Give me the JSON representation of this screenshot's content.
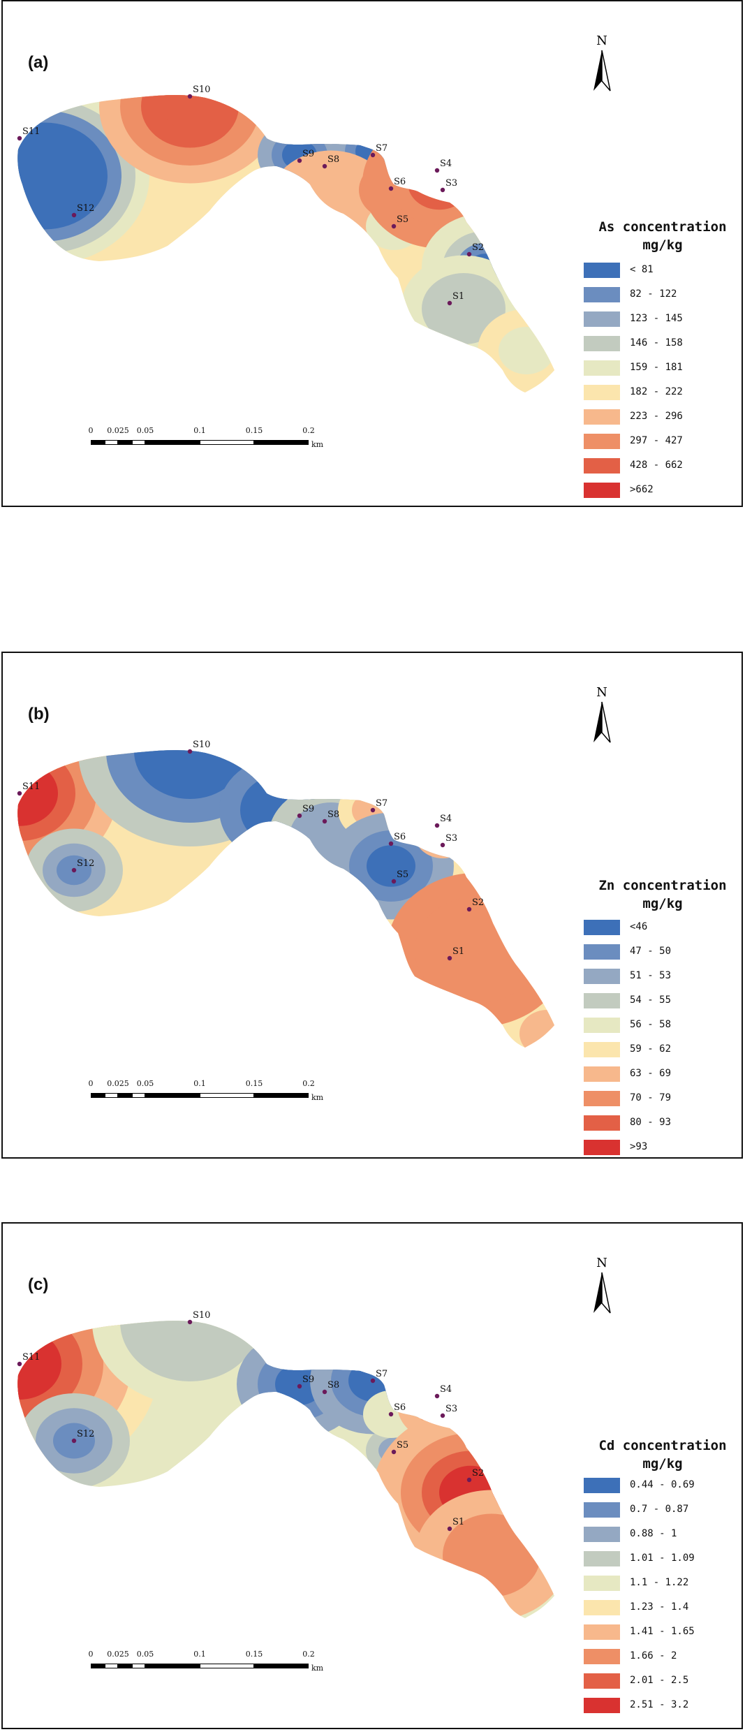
{
  "colors": {
    "ramp": [
      "#3d70b8",
      "#6b8dbf",
      "#94a8c2",
      "#c2cbbf",
      "#e6e8c2",
      "#fbe5ad",
      "#f7b88c",
      "#ee8f66",
      "#e36046",
      "#d93230"
    ],
    "north_arrow": "#000000",
    "sample_point": "#6b1a5a"
  },
  "icons": {
    "north": "north-arrow-icon",
    "point": "sample-point-marker"
  },
  "scalebar": {
    "ticks": [
      "0",
      "0.025",
      "0.05",
      "0.1",
      "0.15",
      "0.2"
    ],
    "unit": "km"
  },
  "panels": [
    {
      "id": "a",
      "label": "(a)",
      "north_label": "N",
      "legend_title_line1": "As concentration",
      "legend_title_line2": "mg/kg",
      "legend": [
        "< 81",
        "82 - 122",
        "123 - 145",
        "146 - 158",
        "159 - 181",
        "182 - 222",
        "223 - 296",
        "297 - 427",
        "428 - 662",
        ">662"
      ],
      "sites": [
        "S1",
        "S2",
        "S3",
        "S4",
        "S5",
        "S6",
        "S7",
        "S8",
        "S9",
        "S10",
        "S11",
        "S12"
      ]
    },
    {
      "id": "b",
      "label": "(b)",
      "north_label": "N",
      "legend_title_line1": "Zn concentration",
      "legend_title_line2": "mg/kg",
      "legend": [
        "<46",
        "47 - 50",
        "51 - 53",
        "54 - 55",
        "56 - 58",
        "59 - 62",
        "63 - 69",
        "70 - 79",
        "80 - 93",
        ">93"
      ],
      "sites": [
        "S1",
        "S2",
        "S3",
        "S4",
        "S5",
        "S6",
        "S7",
        "S8",
        "S9",
        "S10",
        "S11",
        "S12"
      ]
    },
    {
      "id": "c",
      "label": "(c)",
      "north_label": "N",
      "legend_title_line1": "Cd concentration",
      "legend_title_line2": "mg/kg",
      "legend": [
        "0.44 - 0.69",
        "0.7 - 0.87",
        "0.88 - 1",
        "1.01 - 1.09",
        "1.1 - 1.22",
        "1.23 - 1.4",
        "1.41 - 1.65",
        "1.66 - 2",
        "2.01 - 2.5",
        "2.51 - 3.2"
      ],
      "sites": [
        "S1",
        "S2",
        "S3",
        "S4",
        "S5",
        "S6",
        "S7",
        "S8",
        "S9",
        "S10",
        "S11",
        "S12"
      ]
    }
  ]
}
